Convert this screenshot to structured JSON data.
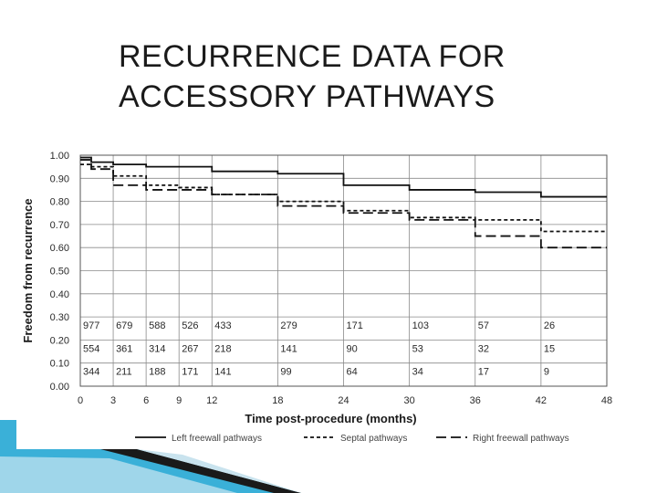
{
  "slide": {
    "title_line1": "RECURRENCE DATA FOR",
    "title_line2": "ACCESSORY PATHWAYS"
  },
  "chart_data": {
    "type": "line",
    "step": true,
    "xlabel": "Time post-procedure (months)",
    "ylabel": "Freedom from recurrence",
    "xlim": [
      0,
      48
    ],
    "ylim": [
      0,
      1
    ],
    "xticks": [
      "0",
      "3",
      "6",
      "9",
      "12",
      "18",
      "24",
      "30",
      "36",
      "42",
      "48"
    ],
    "yticks": [
      "0.00",
      "0.10",
      "0.20",
      "0.30",
      "0.40",
      "0.50",
      "0.60",
      "0.70",
      "0.80",
      "0.90",
      "1.00"
    ],
    "grid": true,
    "legend_position": "bottom",
    "series": [
      {
        "name": "Left freewall pathways",
        "dash": "solid",
        "x": [
          0,
          1,
          3,
          6,
          12,
          18,
          24,
          30,
          36,
          42,
          48
        ],
        "y": [
          0.99,
          0.97,
          0.96,
          0.95,
          0.93,
          0.92,
          0.87,
          0.85,
          0.84,
          0.82,
          0.82
        ],
        "at_risk": [
          "977",
          "679",
          "588",
          "526",
          "433",
          "279",
          "171",
          "103",
          "57",
          "26"
        ]
      },
      {
        "name": "Septal pathways",
        "dash": "dotted",
        "x": [
          0,
          1,
          3,
          6,
          9,
          12,
          18,
          24,
          30,
          36,
          42,
          48
        ],
        "y": [
          0.96,
          0.95,
          0.91,
          0.87,
          0.86,
          0.83,
          0.8,
          0.76,
          0.73,
          0.72,
          0.67,
          0.67
        ],
        "at_risk": [
          "554",
          "361",
          "314",
          "267",
          "218",
          "141",
          "90",
          "53",
          "32",
          "15"
        ]
      },
      {
        "name": "Right freewall pathways",
        "dash": "dashed",
        "x": [
          0,
          1,
          3,
          6,
          12,
          18,
          24,
          30,
          36,
          42,
          48
        ],
        "y": [
          0.98,
          0.94,
          0.87,
          0.85,
          0.83,
          0.78,
          0.75,
          0.72,
          0.65,
          0.6,
          0.6
        ],
        "at_risk": [
          "344",
          "211",
          "188",
          "171",
          "141",
          "99",
          "64",
          "34",
          "17",
          "9"
        ]
      }
    ],
    "at_risk_x": [
      0,
      3,
      6,
      9,
      12,
      18,
      24,
      30,
      36,
      42
    ],
    "at_risk_y": [
      0.265,
      0.165,
      0.065
    ]
  },
  "colors": {
    "line": "#111111",
    "grid": "#8a8a8a",
    "text": "#2a2a2a",
    "accent_teal": "#3ab0d8",
    "accent_dark": "#1a1a1a"
  }
}
